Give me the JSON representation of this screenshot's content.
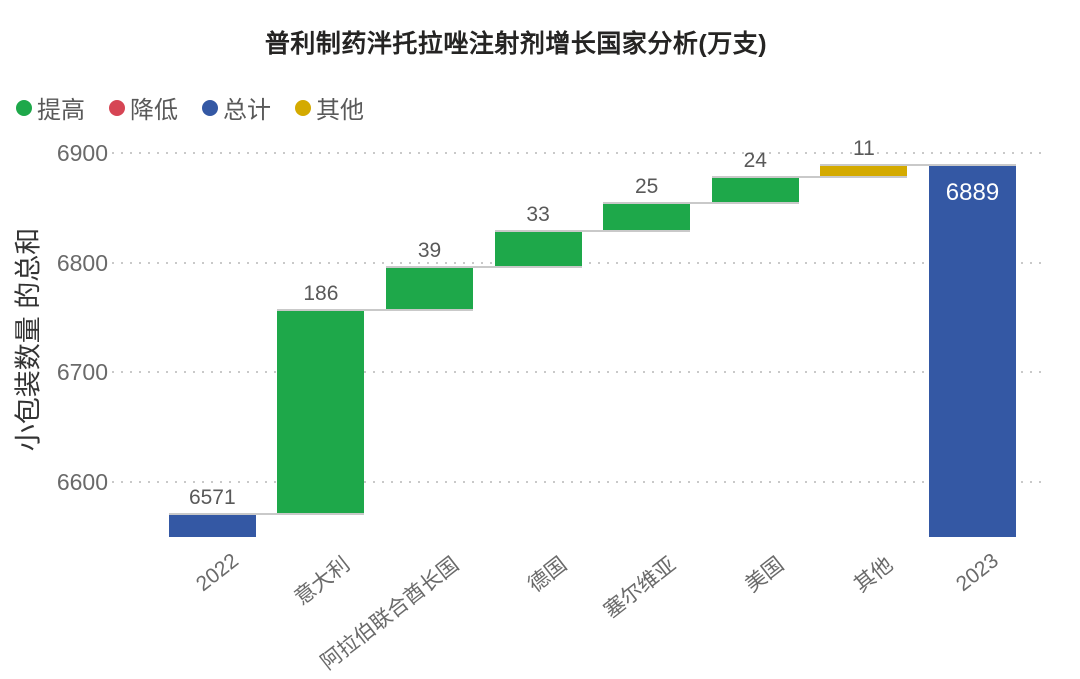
{
  "chart_data": {
    "type": "bar",
    "subtype": "waterfall",
    "title": "普利制药泮托拉唑注射剂增长国家分析(万支)",
    "ylabel": "小包装数量 的总和",
    "xlabel": "",
    "categories": [
      "2022",
      "意大利",
      "阿拉伯联合酋长国",
      "德国",
      "塞尔维亚",
      "美国",
      "其他",
      "2023"
    ],
    "values": [
      6571,
      186,
      39,
      33,
      25,
      24,
      11,
      6889
    ],
    "bar_types": [
      "total",
      "increase",
      "increase",
      "increase",
      "increase",
      "increase",
      "other",
      "total"
    ],
    "data_labels": [
      "6571",
      "186",
      "39",
      "33",
      "25",
      "24",
      "11",
      "6889"
    ],
    "y_ticks": [
      6600,
      6700,
      6800,
      6900
    ],
    "y_range": [
      6550,
      6910
    ],
    "grid": "dotted",
    "legend_position": "top-left",
    "legend": [
      {
        "label": "提高",
        "color": "#1EA84A"
      },
      {
        "label": "降低",
        "color": "#D64554"
      },
      {
        "label": "总计",
        "color": "#3458A4"
      },
      {
        "label": "其他",
        "color": "#D4AA00"
      }
    ],
    "colors": {
      "increase": "#1EA84A",
      "decrease": "#D64554",
      "total": "#3458A4",
      "other": "#D4AA00",
      "gridline": "#c9c9c9",
      "connector": "#c9c9c9",
      "label_text": "#595959",
      "inside_label_text": "#ffffff"
    }
  }
}
